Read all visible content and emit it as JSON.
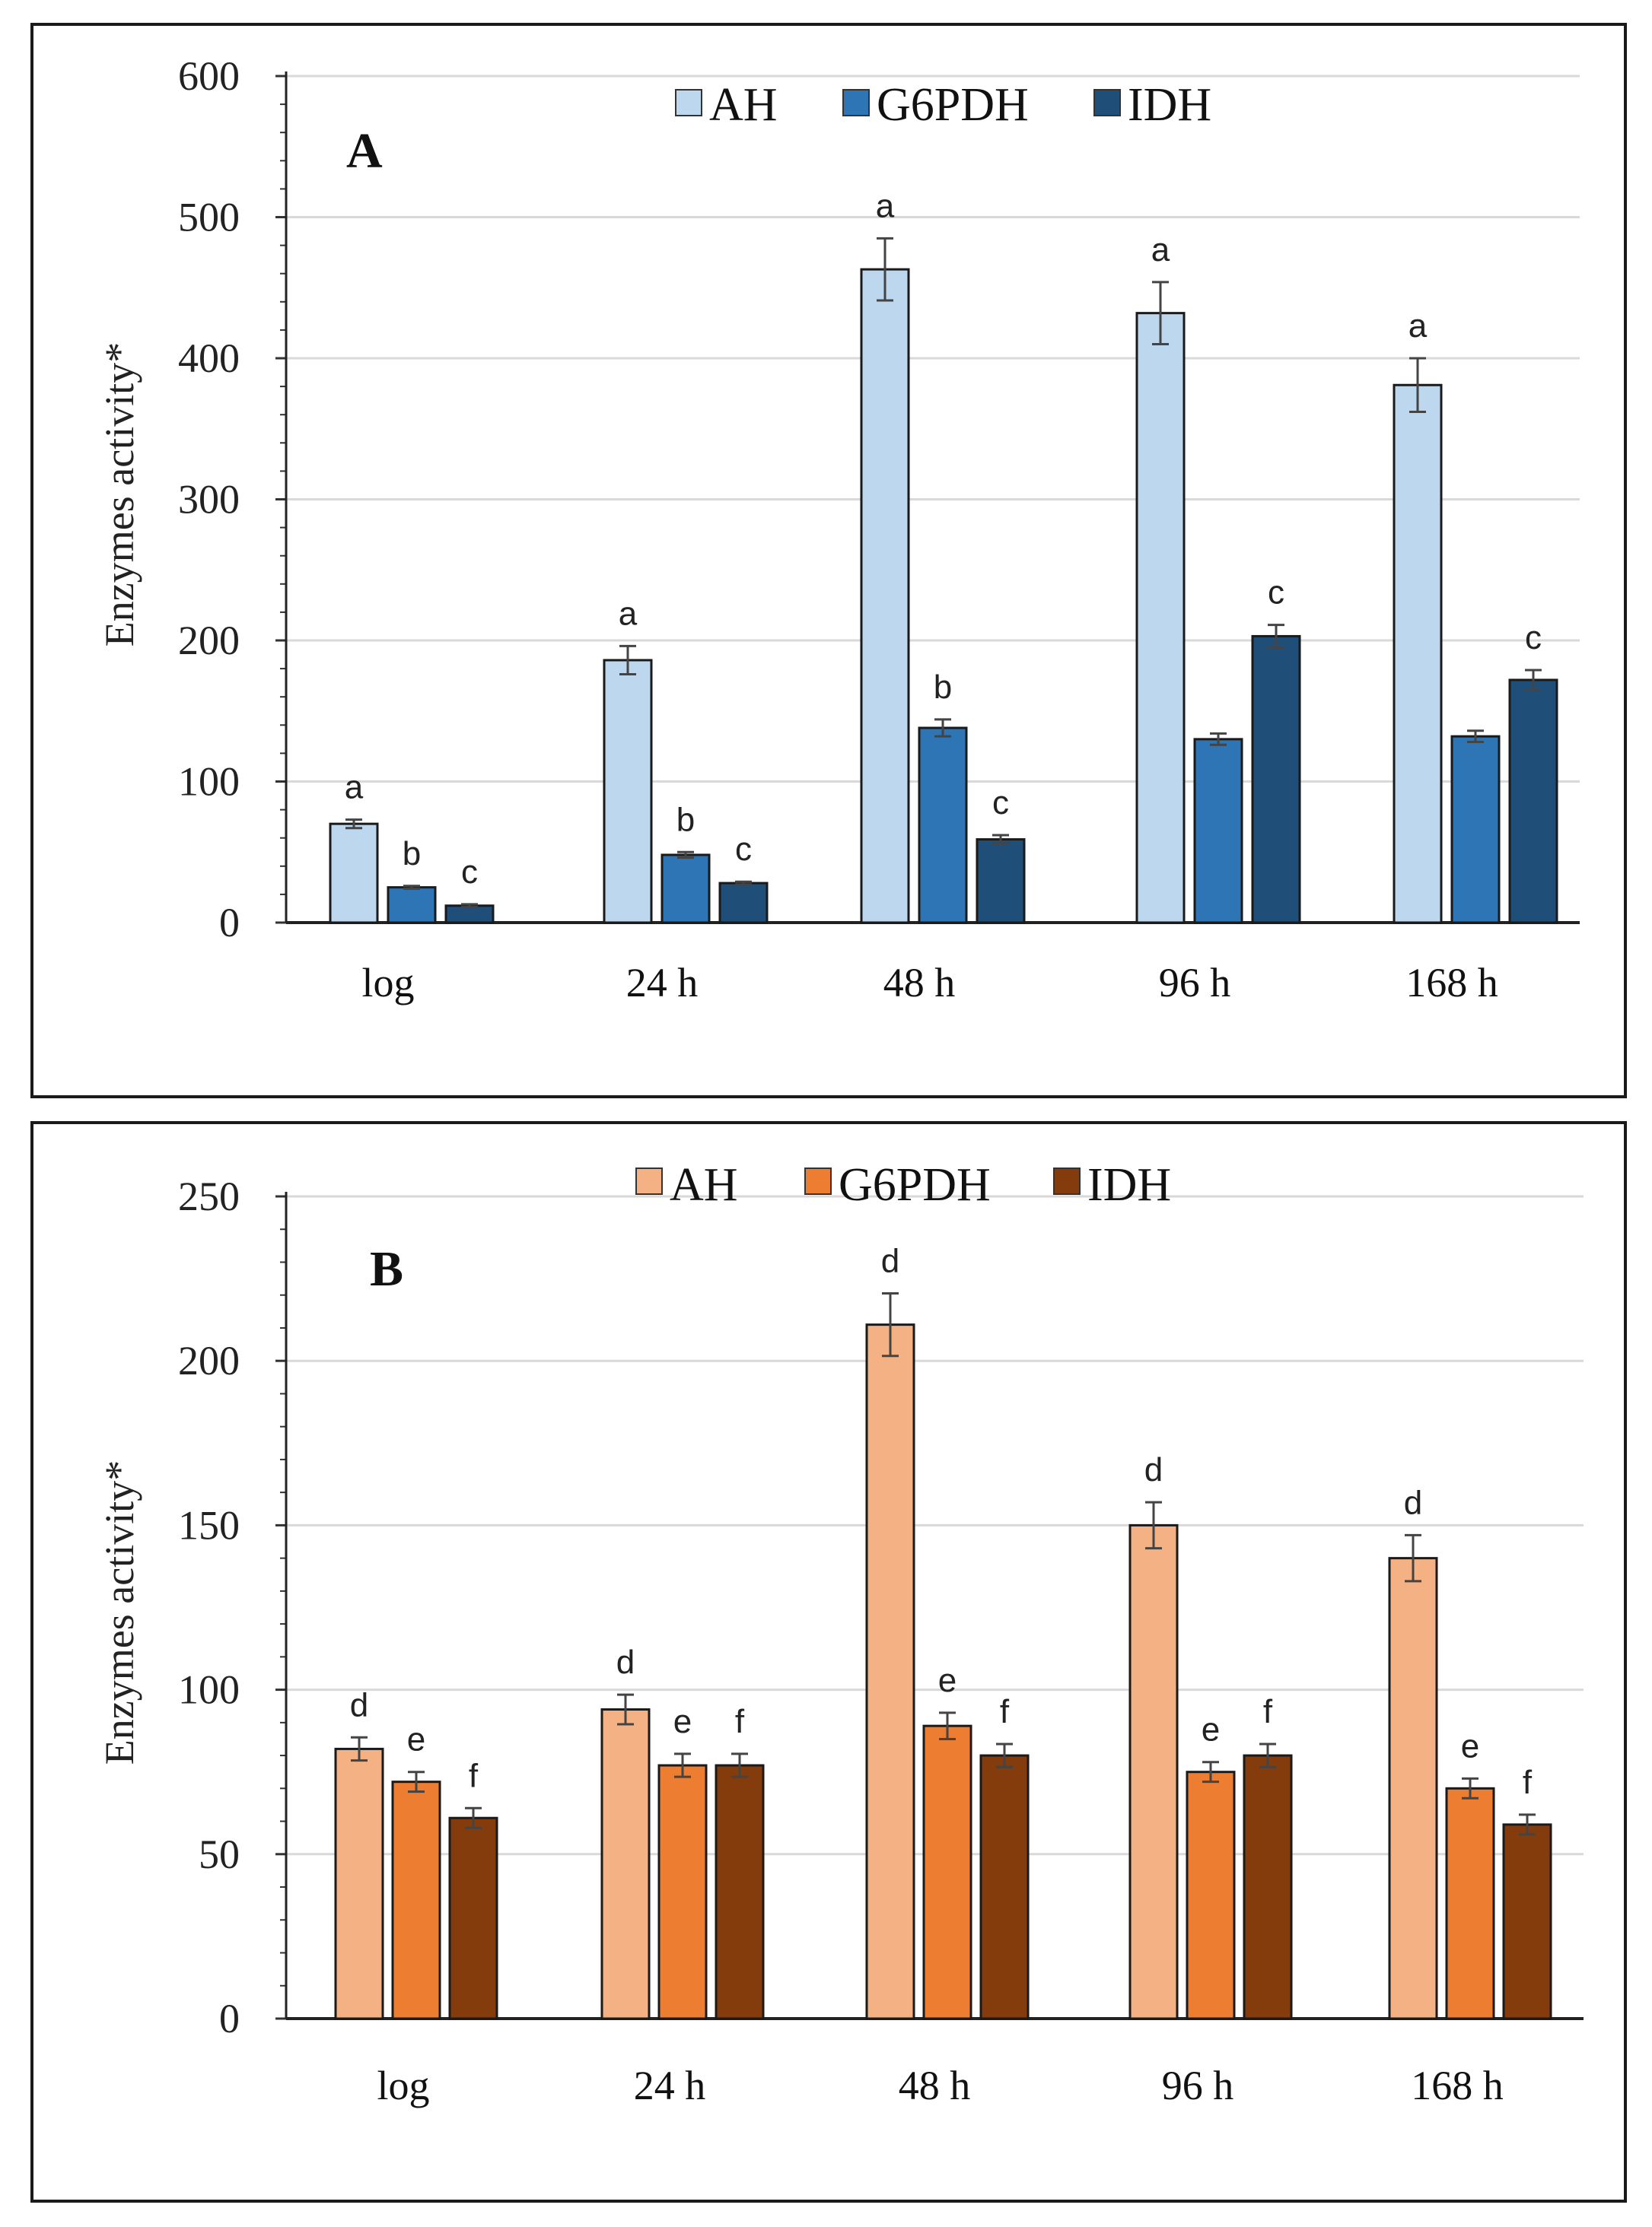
{
  "chart_data": [
    {
      "type": "bar",
      "panel_label": "A",
      "ylabel": "Enzymes activity*",
      "xlabel": "",
      "ylim": [
        0,
        600
      ],
      "yticks": [
        "0",
        "100",
        "200",
        "300",
        "400",
        "500",
        "600"
      ],
      "grid": true,
      "legend_position": "top-center",
      "categories": [
        "log",
        "24 h",
        "48 h",
        "96 h",
        "168 h"
      ],
      "series": [
        {
          "name": "AH",
          "color": "#bdd7ee",
          "values": [
            70,
            186,
            463,
            432,
            381
          ],
          "errors": [
            3,
            10,
            22,
            22,
            19
          ],
          "labels": [
            "a",
            "a",
            "a",
            "a",
            "a"
          ]
        },
        {
          "name": "G6PDH",
          "color": "#2e75b6",
          "values": [
            25,
            48,
            138,
            130,
            132
          ],
          "errors": [
            1,
            2,
            6,
            4,
            4
          ],
          "labels": [
            "b",
            "b",
            "b",
            "",
            ""
          ]
        },
        {
          "name": "IDH",
          "color": "#1f4e79",
          "values": [
            12,
            28,
            59,
            203,
            172
          ],
          "errors": [
            1,
            1,
            3,
            8,
            7
          ],
          "labels": [
            "c",
            "c",
            "c",
            "c",
            "c"
          ]
        }
      ]
    },
    {
      "type": "bar",
      "panel_label": "B",
      "ylabel": "Enzymes activity*",
      "xlabel": "",
      "ylim": [
        0,
        250
      ],
      "yticks": [
        "0",
        "50",
        "100",
        "150",
        "200",
        "250"
      ],
      "grid": true,
      "legend_position": "top-center",
      "categories": [
        "log",
        "24 h",
        "48 h",
        "96 h",
        "168 h"
      ],
      "series": [
        {
          "name": "AH",
          "color": "#f4b183",
          "values": [
            82,
            94,
            211,
            150,
            140
          ],
          "errors": [
            3.5,
            4.5,
            9.5,
            7,
            7
          ],
          "labels": [
            "d",
            "d",
            "d",
            "d",
            "d"
          ]
        },
        {
          "name": "G6PDH",
          "color": "#ed7d31",
          "values": [
            72,
            77,
            89,
            75,
            70
          ],
          "errors": [
            3,
            3.5,
            4,
            3,
            3
          ],
          "labels": [
            "e",
            "e",
            "e",
            "e",
            "e"
          ]
        },
        {
          "name": "IDH",
          "color": "#843c0c",
          "values": [
            61,
            77,
            80,
            80,
            59
          ],
          "errors": [
            3,
            3.5,
            3.5,
            3.5,
            3
          ],
          "labels": [
            "f",
            "f",
            "f",
            "f",
            "f"
          ]
        }
      ]
    }
  ]
}
